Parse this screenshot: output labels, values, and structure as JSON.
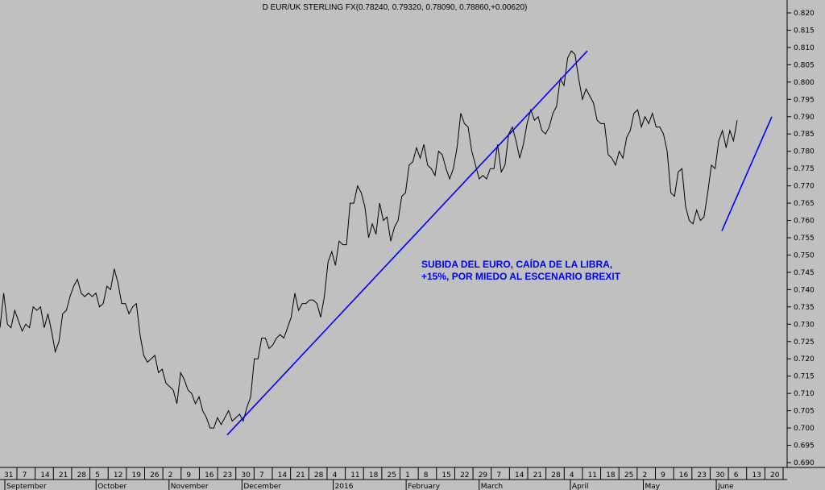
{
  "chart_data": {
    "type": "line",
    "title": "D EUR/UK STERLING FX(0.78240, 0.79320, 0.78090, 0.78860,+0.00620)",
    "ylim": [
      0.6875,
      0.8225
    ],
    "y_ticks": [
      "0.820",
      "0.815",
      "0.810",
      "0.805",
      "0.800",
      "0.795",
      "0.790",
      "0.785",
      "0.780",
      "0.775",
      "0.770",
      "0.765",
      "0.760",
      "0.755",
      "0.750",
      "0.745",
      "0.740",
      "0.735",
      "0.730",
      "0.725",
      "0.720",
      "0.715",
      "0.710",
      "0.705",
      "0.700",
      "0.695",
      "0.690"
    ],
    "x_day_ticks": [
      "31",
      "7",
      "14",
      "21",
      "28",
      "5",
      "12",
      "19",
      "26",
      "2",
      "9",
      "16",
      "23",
      "30",
      "7",
      "14",
      "21",
      "28",
      "4",
      "11",
      "18",
      "25",
      "1",
      "8",
      "15",
      "22",
      "29",
      "7",
      "14",
      "21",
      "28",
      "4",
      "11",
      "18",
      "25",
      "2",
      "9",
      "16",
      "23",
      "30",
      "6",
      "13",
      "20"
    ],
    "x_month_ticks": [
      "September",
      "October",
      "November",
      "December",
      "2016",
      "February",
      "March",
      "April",
      "May",
      "June"
    ],
    "series": [
      {
        "color": "#000000",
        "values": [
          0.729,
          0.739,
          0.73,
          0.729,
          0.734,
          0.731,
          0.728,
          0.73,
          0.729,
          0.735,
          0.734,
          0.735,
          0.729,
          0.733,
          0.728,
          0.722,
          0.725,
          0.733,
          0.734,
          0.738,
          0.741,
          0.743,
          0.739,
          0.738,
          0.739,
          0.738,
          0.739,
          0.735,
          0.736,
          0.741,
          0.74,
          0.746,
          0.742,
          0.736,
          0.736,
          0.733,
          0.735,
          0.736,
          0.727,
          0.721,
          0.719,
          0.72,
          0.721,
          0.716,
          0.717,
          0.713,
          0.712,
          0.711,
          0.707,
          0.716,
          0.714,
          0.711,
          0.71,
          0.707,
          0.709,
          0.705,
          0.703,
          0.7,
          0.7,
          0.703,
          0.701,
          0.703,
          0.705,
          0.702,
          0.703,
          0.704,
          0.702,
          0.706,
          0.709,
          0.72,
          0.72,
          0.726,
          0.726,
          0.723,
          0.724,
          0.726,
          0.727,
          0.726,
          0.729,
          0.732,
          0.739,
          0.734,
          0.736,
          0.736,
          0.737,
          0.737,
          0.736,
          0.732,
          0.738,
          0.748,
          0.751,
          0.747,
          0.754,
          0.753,
          0.753,
          0.765,
          0.765,
          0.77,
          0.768,
          0.764,
          0.755,
          0.759,
          0.756,
          0.765,
          0.76,
          0.761,
          0.754,
          0.758,
          0.76,
          0.767,
          0.768,
          0.776,
          0.777,
          0.781,
          0.778,
          0.782,
          0.776,
          0.775,
          0.773,
          0.78,
          0.779,
          0.775,
          0.772,
          0.775,
          0.781,
          0.791,
          0.788,
          0.787,
          0.78,
          0.776,
          0.772,
          0.773,
          0.772,
          0.775,
          0.775,
          0.782,
          0.774,
          0.776,
          0.785,
          0.787,
          0.783,
          0.778,
          0.782,
          0.788,
          0.792,
          0.789,
          0.79,
          0.786,
          0.785,
          0.787,
          0.791,
          0.793,
          0.801,
          0.799,
          0.807,
          0.809,
          0.808,
          0.801,
          0.795,
          0.798,
          0.796,
          0.794,
          0.789,
          0.788,
          0.788,
          0.779,
          0.778,
          0.776,
          0.78,
          0.778,
          0.784,
          0.786,
          0.791,
          0.792,
          0.787,
          0.79,
          0.788,
          0.791,
          0.787,
          0.787,
          0.785,
          0.78,
          0.768,
          0.767,
          0.774,
          0.775,
          0.764,
          0.76,
          0.759,
          0.763,
          0.76,
          0.761,
          0.768,
          0.776,
          0.775,
          0.783,
          0.786,
          0.781,
          0.786,
          0.783,
          0.789
        ]
      }
    ],
    "trendlines": [
      {
        "color": "#0000ff",
        "from": [
          0.698
        ],
        "to": [
          0.809
        ]
      },
      {
        "color": "#0000ff",
        "from": [
          0.757
        ],
        "to": [
          0.79
        ]
      }
    ],
    "annotation": {
      "line1": "SUBIDA DEL EURO, CAÍDA DE LA LIBRA,",
      "line2": "+15%, POR MIEDO AL ESCENARIO BREXIT"
    },
    "grid": false
  }
}
